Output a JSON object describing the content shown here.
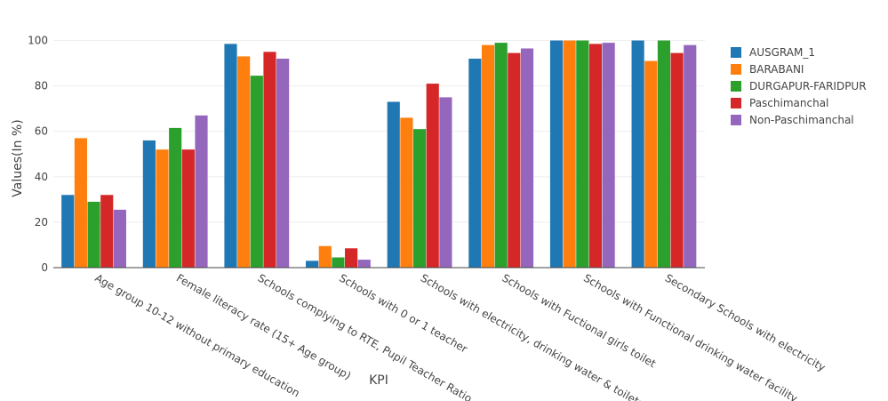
{
  "chart_data": {
    "type": "bar",
    "xlabel": "KPI",
    "ylabel": "Values(In %)",
    "ylim": [
      0,
      110
    ],
    "yticks": [
      0,
      20,
      40,
      60,
      80,
      100
    ],
    "grid": "horizontal",
    "legend_position": "top-right",
    "categories": [
      "Age group 10-12 without primary education",
      "Female literacy rate (15+ Age group)",
      "Schools complying to RTE, Pupil Teacher Ratio",
      "Schools with 0 or 1 teacher",
      "Schools with electricity, drinking water & toilets",
      "Schools with Fuctional girls toilet",
      "Schools with Functional drinking water facility",
      "Secondary Schools with electricity"
    ],
    "series": [
      {
        "name": "AUSGRAM_1",
        "color": "#1f77b4",
        "values": [
          32,
          56,
          98.5,
          3,
          73,
          92,
          100,
          100
        ]
      },
      {
        "name": "BARABANI",
        "color": "#ff7f0e",
        "values": [
          57,
          52,
          93,
          9.5,
          66,
          98,
          100,
          91
        ]
      },
      {
        "name": "DURGAPUR-FARIDPUR",
        "color": "#2ca02c",
        "values": [
          29,
          61.5,
          84.5,
          4.5,
          61,
          99,
          100,
          100
        ]
      },
      {
        "name": "Paschimanchal",
        "color": "#d62728",
        "values": [
          32,
          52,
          95,
          8.5,
          81,
          94.5,
          98.5,
          94.5
        ]
      },
      {
        "name": "Non-Paschimanchal",
        "color": "#9467bd",
        "values": [
          25.5,
          67,
          92,
          3.5,
          75,
          96.5,
          99,
          98
        ]
      }
    ]
  }
}
